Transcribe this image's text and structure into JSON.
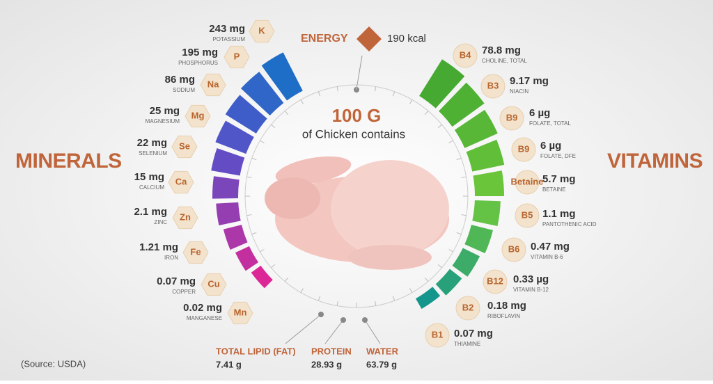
{
  "title": "100 G",
  "subtitle": "of Chicken contains",
  "energy": {
    "label": "ENERGY",
    "value": "190 kcal"
  },
  "minerals": {
    "heading": "MINERALS",
    "items": [
      {
        "amount": "243 mg",
        "name": "POTASSIUM",
        "symbol": "K"
      },
      {
        "amount": "195 mg",
        "name": "PHOSPHORUS",
        "symbol": "P"
      },
      {
        "amount": "86 mg",
        "name": "SODIUM",
        "symbol": "Na"
      },
      {
        "amount": "25 mg",
        "name": "MAGNESIUM",
        "symbol": "Mg"
      },
      {
        "amount": "22 mg",
        "name": "SELENIUM",
        "symbol": "Se"
      },
      {
        "amount": "15 mg",
        "name": "CALCIUM",
        "symbol": "Ca"
      },
      {
        "amount": "2.1 mg",
        "name": "ZINC",
        "symbol": "Zn"
      },
      {
        "amount": "1.21 mg",
        "name": "IRON",
        "symbol": "Fe"
      },
      {
        "amount": "0.07 mg",
        "name": "COPPER",
        "symbol": "Cu"
      },
      {
        "amount": "0.02 mg",
        "name": "MANGANESE",
        "symbol": "Mn"
      }
    ]
  },
  "vitamins": {
    "heading": "VITAMINS",
    "items": [
      {
        "amount": "78.8 mg",
        "name": "CHOLINE, TOTAL",
        "symbol": "B4"
      },
      {
        "amount": "9.17 mg",
        "name": "NIACIN",
        "symbol": "B3"
      },
      {
        "amount": "6 µg",
        "name": "FOLATE, TOTAL",
        "symbol": "B9"
      },
      {
        "amount": "6 µg",
        "name": "FOLATE, DFE",
        "symbol": "B9"
      },
      {
        "amount": "5.7 mg",
        "name": "BETAINE",
        "symbol": "Betaine"
      },
      {
        "amount": "1.1 mg",
        "name": "PANTOTHENIC ACID",
        "symbol": "B5"
      },
      {
        "amount": "0.47 mg",
        "name": "VITAMIN B-6",
        "symbol": "B6"
      },
      {
        "amount": "0.33 µg",
        "name": "VITAMIN B-12",
        "symbol": "B12"
      },
      {
        "amount": "0.18 mg",
        "name": "RIBOFLAVIN",
        "symbol": "B2"
      },
      {
        "amount": "0.07 mg",
        "name": "THIAMINE",
        "symbol": "B1"
      }
    ]
  },
  "macros": [
    {
      "name": "TOTAL LIPID (FAT)",
      "value": "7.41 g"
    },
    {
      "name": "PROTEIN",
      "value": "28.93 g"
    },
    {
      "name": "WATER",
      "value": "63.79 g"
    }
  ],
  "source": "(Source: USDA)"
}
